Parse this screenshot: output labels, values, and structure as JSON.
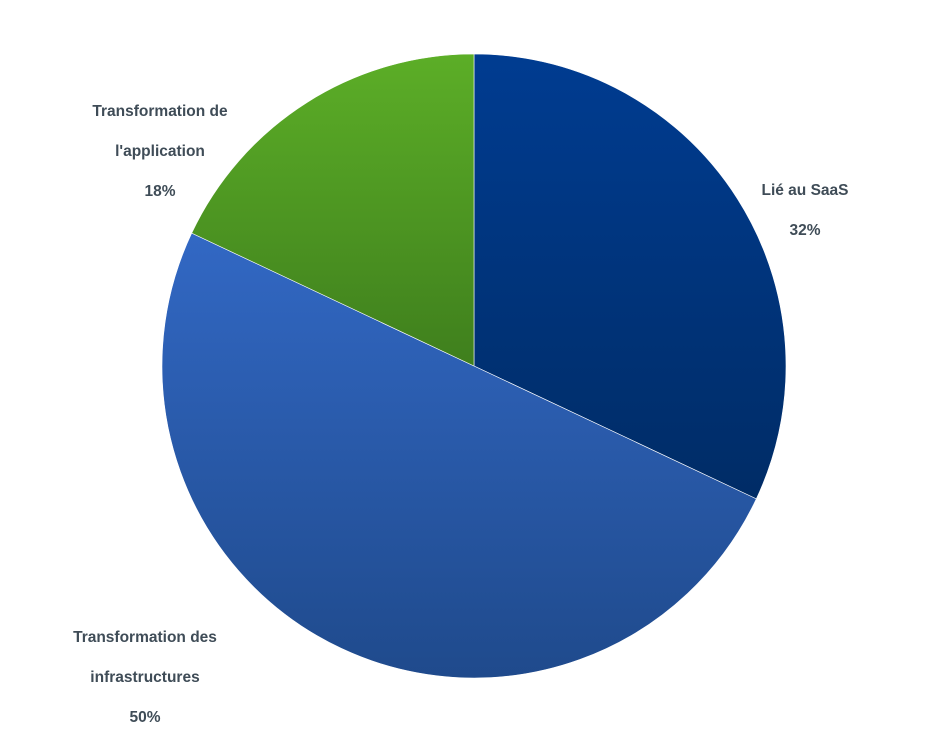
{
  "chart_data": {
    "type": "pie",
    "title": "",
    "slices": [
      {
        "label": "Lié au SaaS",
        "value": 32,
        "value_label": "32%",
        "color": "#003587"
      },
      {
        "label": "Transformation des infrastructures",
        "value": 50,
        "value_label": "50%",
        "color": "#2a5cb0"
      },
      {
        "label": "Transformation de l'application",
        "value": 18,
        "value_label": "18%",
        "color": "#4f9d23"
      }
    ]
  },
  "labels": {
    "saas": {
      "line1": "Lié au SaaS",
      "line2": "",
      "pct": "32%"
    },
    "infra": {
      "line1": "Transformation des",
      "line2": "infrastructures",
      "pct": "50%"
    },
    "app": {
      "line1": "Transformation de",
      "line2": "l'application",
      "pct": "18%"
    }
  }
}
